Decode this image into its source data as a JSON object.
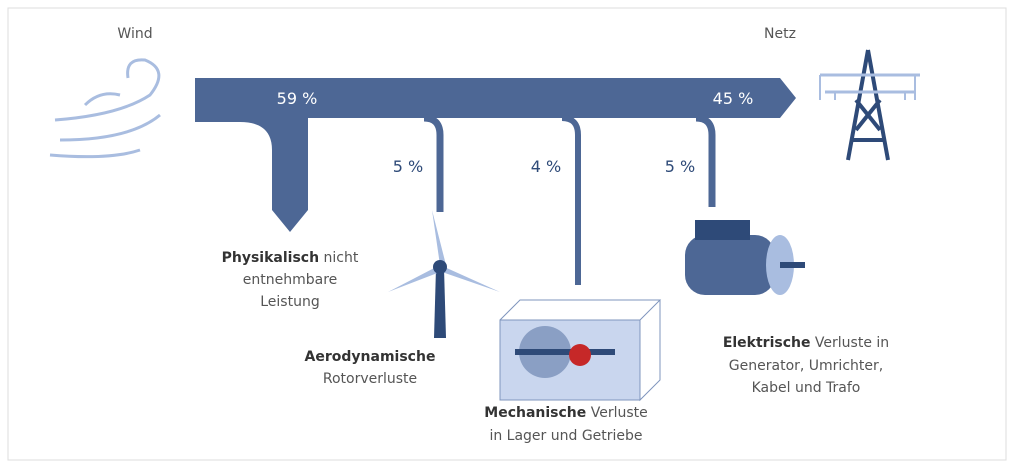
{
  "source": {
    "label": "Wind"
  },
  "sink": {
    "label": "Netz"
  },
  "flows": {
    "input": "59 %",
    "output": "45 %"
  },
  "losses": [
    {
      "value": "5 %",
      "bold": "Aerodynamische",
      "lines": [
        "Rotorverluste"
      ]
    },
    {
      "value": "4 %",
      "bold": "Mechanische",
      "first_rest": " Verluste",
      "lines": [
        "in Lager und Getriebe"
      ]
    },
    {
      "value": "5 %",
      "bold": "Elektrische",
      "first_rest": " Verluste in",
      "lines": [
        "Generator, Umrichter,",
        "Kabel und Trafo"
      ]
    }
  ],
  "physical": {
    "bold": "Physikalisch",
    "first_rest": " nicht",
    "lines": [
      "entnehmbare",
      "Leistung"
    ]
  }
}
